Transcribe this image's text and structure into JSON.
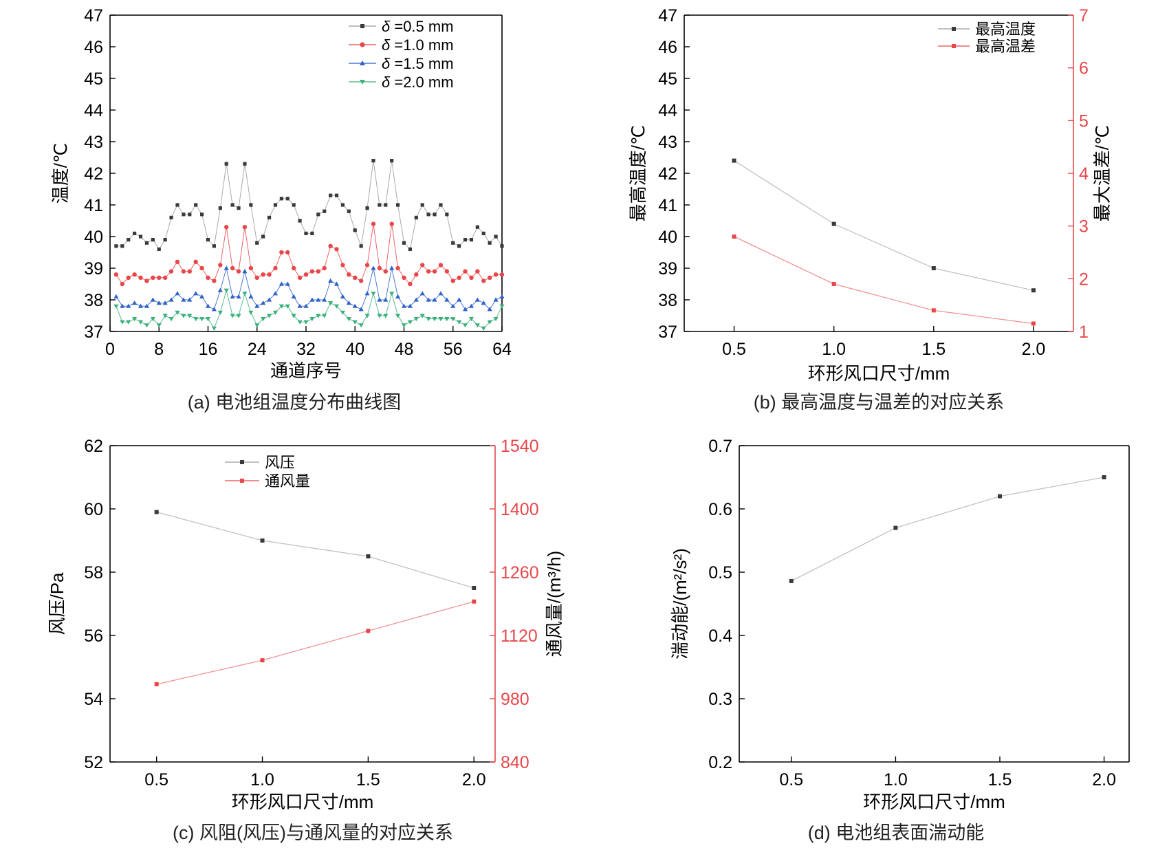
{
  "chart_data": [
    {
      "type": "line",
      "caption": "(a) 电池组温度分布曲线图",
      "xlabel": "通道序号",
      "ylabel": "温度/℃",
      "xlim": [
        0,
        64
      ],
      "ylim": [
        37,
        47
      ],
      "xticks": [
        0,
        8,
        16,
        24,
        32,
        40,
        48,
        56,
        64
      ],
      "yticks": [
        37,
        38,
        39,
        40,
        41,
        42,
        43,
        44,
        45,
        46,
        47
      ],
      "x": [
        1,
        2,
        3,
        4,
        5,
        6,
        7,
        8,
        9,
        10,
        11,
        12,
        13,
        14,
        15,
        16,
        17,
        18,
        19,
        20,
        21,
        22,
        23,
        24,
        25,
        26,
        27,
        28,
        29,
        30,
        31,
        32,
        33,
        34,
        35,
        36,
        37,
        38,
        39,
        40,
        41,
        42,
        43,
        44,
        45,
        46,
        47,
        48,
        49,
        50,
        51,
        52,
        53,
        54,
        55,
        56,
        57,
        58,
        59,
        60,
        61,
        62,
        63,
        64
      ],
      "series": [
        {
          "name": "δ =0.5 mm",
          "color": "#3a3a3a",
          "marker": "square",
          "values": [
            39.7,
            39.7,
            39.9,
            40.1,
            40.0,
            39.8,
            39.9,
            39.6,
            39.9,
            40.6,
            41.0,
            40.7,
            40.7,
            41.0,
            40.7,
            39.9,
            39.7,
            40.9,
            42.3,
            41.0,
            40.9,
            42.3,
            41.0,
            39.8,
            40.0,
            40.6,
            41.0,
            41.2,
            41.2,
            41.0,
            40.5,
            40.1,
            40.1,
            40.7,
            40.8,
            41.3,
            41.3,
            41.0,
            40.8,
            40.2,
            39.7,
            40.9,
            42.4,
            41.0,
            41.0,
            42.4,
            41.0,
            39.8,
            39.6,
            40.6,
            41.0,
            40.7,
            40.7,
            41.0,
            40.7,
            39.8,
            39.7,
            39.9,
            39.9,
            40.3,
            40.1,
            39.8,
            40.0,
            39.7
          ]
        },
        {
          "name": "δ =1.0 mm",
          "color": "#e8474a",
          "marker": "circle",
          "values": [
            38.8,
            38.5,
            38.7,
            38.8,
            38.7,
            38.6,
            38.7,
            38.7,
            38.7,
            38.9,
            39.2,
            38.9,
            38.9,
            39.2,
            39.0,
            38.7,
            38.6,
            39.1,
            40.3,
            39.0,
            38.9,
            40.3,
            39.0,
            38.7,
            38.8,
            38.8,
            39.0,
            39.5,
            39.5,
            39.0,
            38.7,
            38.8,
            38.9,
            38.9,
            39.0,
            39.7,
            39.6,
            39.1,
            38.8,
            38.7,
            38.6,
            39.1,
            40.4,
            39.0,
            38.9,
            40.4,
            39.0,
            38.7,
            38.5,
            38.8,
            39.1,
            38.9,
            38.9,
            39.1,
            38.9,
            38.6,
            38.7,
            38.9,
            38.7,
            38.9,
            38.6,
            38.7,
            38.8,
            38.8
          ]
        },
        {
          "name": "δ =1.5 mm",
          "color": "#2f62c8",
          "marker": "triangle-up",
          "values": [
            38.1,
            37.8,
            37.8,
            37.9,
            37.8,
            37.8,
            38.0,
            37.9,
            37.9,
            38.0,
            38.2,
            38.0,
            38.0,
            38.2,
            38.1,
            37.8,
            37.7,
            38.3,
            39.0,
            38.1,
            38.1,
            38.9,
            38.1,
            37.8,
            37.9,
            38.0,
            38.2,
            38.5,
            38.5,
            38.1,
            37.8,
            37.8,
            38.0,
            38.0,
            38.0,
            38.6,
            38.5,
            38.1,
            37.9,
            37.8,
            37.7,
            38.2,
            39.0,
            38.0,
            38.0,
            39.0,
            38.1,
            37.8,
            37.8,
            38.0,
            38.2,
            38.0,
            38.0,
            38.2,
            38.0,
            37.8,
            38.0,
            37.7,
            37.8,
            38.0,
            37.9,
            37.7,
            38.0,
            38.1
          ]
        },
        {
          "name": "δ =2.0 mm",
          "color": "#3bb07c",
          "marker": "triangle-down",
          "values": [
            37.8,
            37.3,
            37.3,
            37.4,
            37.3,
            37.2,
            37.4,
            37.2,
            37.5,
            37.4,
            37.6,
            37.5,
            37.5,
            37.4,
            37.4,
            37.4,
            37.1,
            37.6,
            38.3,
            37.5,
            37.5,
            38.2,
            37.6,
            37.2,
            37.4,
            37.5,
            37.6,
            37.8,
            37.8,
            37.5,
            37.3,
            37.3,
            37.4,
            37.5,
            37.5,
            37.9,
            37.8,
            37.6,
            37.4,
            37.3,
            37.2,
            37.5,
            38.2,
            37.5,
            37.5,
            38.2,
            37.5,
            37.2,
            37.3,
            37.4,
            37.5,
            37.4,
            37.4,
            37.4,
            37.4,
            37.4,
            37.3,
            37.2,
            37.4,
            37.2,
            37.1,
            37.3,
            37.4,
            37.8
          ]
        }
      ]
    },
    {
      "type": "line",
      "caption": "(b) 最高温度与温差的对应关系",
      "xlabel": "环形风口尺寸/mm",
      "ylabel": "最高温度/℃",
      "ylabel_right": "最大温差/℃",
      "xlim": [
        0.25,
        2.2
      ],
      "ylim": [
        37,
        47
      ],
      "ylim_right": [
        1,
        7
      ],
      "xticks": [
        0.5,
        1.0,
        1.5,
        2.0
      ],
      "xtick_labels": [
        "0.5",
        "1.0",
        "1.5",
        "2.0"
      ],
      "yticks": [
        37,
        38,
        39,
        40,
        41,
        42,
        43,
        44,
        45,
        46,
        47
      ],
      "yticks_right": [
        1,
        2,
        3,
        4,
        5,
        6,
        7
      ],
      "right_axis_color": "#e8474a",
      "x": [
        0.5,
        1.0,
        1.5,
        2.0
      ],
      "series": [
        {
          "name": "最高温度",
          "color": "#3a3a3a",
          "axis": "left",
          "values": [
            42.4,
            40.4,
            39.0,
            38.3
          ]
        },
        {
          "name": "最高温差",
          "color": "#e8474a",
          "axis": "right",
          "values": [
            2.8,
            1.9,
            1.4,
            1.15
          ]
        }
      ]
    },
    {
      "type": "line",
      "caption": "(c) 风阻(风压)与通风量的对应关系",
      "xlabel": "环形风口尺寸/mm",
      "ylabel": "风压/Pa",
      "ylabel_right": "通风量/(m³/h)",
      "xlim": [
        0.28,
        2.1
      ],
      "ylim": [
        52,
        62
      ],
      "ylim_right": [
        840,
        1540
      ],
      "xticks": [
        0.5,
        1.0,
        1.5,
        2.0
      ],
      "xtick_labels": [
        "0.5",
        "1.0",
        "1.5",
        "2.0"
      ],
      "yticks": [
        52,
        54,
        56,
        58,
        60,
        62
      ],
      "yticks_right": [
        840,
        980,
        1120,
        1260,
        1400,
        1540
      ],
      "right_axis_color": "#e8474a",
      "x": [
        0.5,
        1.0,
        1.5,
        2.0
      ],
      "series": [
        {
          "name": "风压",
          "color": "#3a3a3a",
          "axis": "left",
          "values": [
            59.9,
            59.0,
            58.5,
            57.5
          ]
        },
        {
          "name": "通风量",
          "color": "#e8474a",
          "axis": "right",
          "values": [
            1012,
            1065,
            1130,
            1195
          ]
        }
      ]
    },
    {
      "type": "line",
      "caption": "(d) 电池组表面湍动能",
      "xlabel": "环形风口尺寸/mm",
      "ylabel": "湍动能/(m²/s²)",
      "xlim": [
        0.25,
        2.12
      ],
      "ylim": [
        0.2,
        0.7
      ],
      "xticks": [
        0.5,
        1.0,
        1.5,
        2.0
      ],
      "xtick_labels": [
        "0.5",
        "1.0",
        "1.5",
        "2.0"
      ],
      "yticks": [
        0.2,
        0.3,
        0.4,
        0.5,
        0.6,
        0.7
      ],
      "ytick_labels": [
        "0.2",
        "0.3",
        "0.4",
        "0.5",
        "0.6",
        "0.7"
      ],
      "x": [
        0.5,
        1.0,
        1.5,
        2.0
      ],
      "series": [
        {
          "name": "湍动能",
          "color": "#3a3a3a",
          "axis": "left",
          "values": [
            0.486,
            0.57,
            0.62,
            0.65
          ]
        }
      ]
    }
  ]
}
